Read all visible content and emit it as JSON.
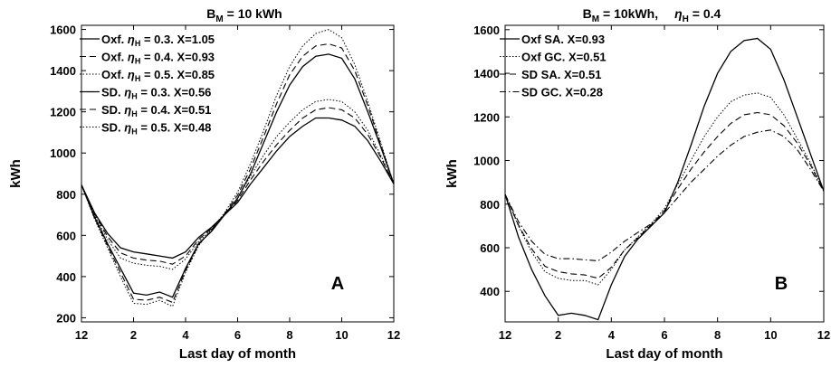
{
  "chart_data": [
    {
      "type": "line",
      "title_main": "B",
      "title_sub": "M",
      "title_rest": " = 10 kWh",
      "title_extra": "",
      "title_extra_sub": "",
      "title_extra_rest": "",
      "panel_letter": "A",
      "xlabel": "Last day of month",
      "ylabel": "kWh",
      "xlim": [
        0,
        12
      ],
      "ylim": [
        180,
        1620
      ],
      "x_ticks": [
        0,
        2,
        4,
        6,
        8,
        10,
        12
      ],
      "x_tick_labels": [
        "12",
        "2",
        "4",
        "6",
        "8",
        "10",
        "12"
      ],
      "y_ticks": [
        200,
        400,
        600,
        800,
        1000,
        1200,
        1400,
        1600
      ],
      "y_tick_labels": [
        "200",
        "400",
        "600",
        "800",
        "1000",
        "1200",
        "1400",
        "1600"
      ],
      "legend_placement": "top-left",
      "grid": false,
      "x": [
        0,
        0.5,
        1,
        1.5,
        2,
        2.5,
        3,
        3.5,
        4,
        4.5,
        5,
        5.5,
        6,
        6.5,
        7,
        7.5,
        8,
        8.5,
        9,
        9.5,
        10,
        10.5,
        11,
        11.5,
        12
      ],
      "series": [
        {
          "legend": "Oxf.",
          "eta_sub": "H",
          "legend_rest": " = 0.3. X=1.05",
          "dash": "solid",
          "width": 1.3,
          "values": [
            845,
            690,
            560,
            440,
            320,
            310,
            325,
            300,
            440,
            560,
            620,
            700,
            780,
            900,
            1050,
            1200,
            1330,
            1420,
            1470,
            1480,
            1460,
            1360,
            1200,
            1030,
            850
          ]
        },
        {
          "legend": "Oxf.",
          "eta_sub": "H",
          "legend_rest": " = 0.4. X=0.93",
          "dash": "long",
          "width": 1.1,
          "values": [
            845,
            685,
            550,
            420,
            290,
            285,
            300,
            275,
            430,
            555,
            625,
            705,
            795,
            925,
            1080,
            1240,
            1380,
            1470,
            1520,
            1530,
            1510,
            1400,
            1230,
            1040,
            850
          ]
        },
        {
          "legend": "Oxf.",
          "eta_sub": "H",
          "legend_rest": " = 0.5. X=0.85",
          "dash": "dot",
          "width": 1.0,
          "values": [
            845,
            680,
            540,
            400,
            270,
            265,
            285,
            255,
            420,
            550,
            630,
            710,
            810,
            950,
            1110,
            1280,
            1420,
            1520,
            1580,
            1600,
            1560,
            1430,
            1250,
            1050,
            850
          ]
        },
        {
          "legend": "SD.",
          "eta_sub": "H",
          "legend_rest": " = 0.3. X=0.56",
          "dash": "solid",
          "width": 1.3,
          "values": [
            845,
            710,
            610,
            540,
            520,
            510,
            500,
            490,
            520,
            590,
            640,
            700,
            760,
            850,
            930,
            1010,
            1080,
            1130,
            1170,
            1170,
            1160,
            1130,
            1060,
            960,
            850
          ]
        },
        {
          "legend": "SD.",
          "eta_sub": "H",
          "legend_rest": " = 0.4. X=0.51",
          "dash": "long",
          "width": 1.1,
          "values": [
            845,
            705,
            595,
            515,
            490,
            480,
            475,
            460,
            500,
            580,
            635,
            700,
            770,
            870,
            960,
            1040,
            1110,
            1170,
            1210,
            1220,
            1210,
            1170,
            1090,
            980,
            850
          ]
        },
        {
          "legend": "SD.",
          "eta_sub": "H",
          "legend_rest": " = 0.5. X=0.48",
          "dash": "dot",
          "width": 1.0,
          "values": [
            845,
            700,
            580,
            490,
            465,
            455,
            450,
            435,
            485,
            570,
            630,
            700,
            780,
            890,
            990,
            1080,
            1150,
            1210,
            1250,
            1260,
            1250,
            1200,
            1110,
            990,
            850
          ]
        }
      ]
    },
    {
      "type": "line",
      "title_main": "B",
      "title_sub": "M",
      "title_rest": " = 10kWh,",
      "title_extra": "η",
      "title_extra_sub": "H",
      "title_extra_rest": " = 0.4",
      "panel_letter": "B",
      "xlabel": "Last day of month",
      "ylabel": "kWh",
      "xlim": [
        0,
        12
      ],
      "ylim": [
        260,
        1620
      ],
      "x_ticks": [
        0,
        2,
        4,
        6,
        8,
        10,
        12
      ],
      "x_tick_labels": [
        "12",
        "2",
        "4",
        "6",
        "8",
        "10",
        "12"
      ],
      "y_ticks": [
        400,
        600,
        800,
        1000,
        1200,
        1400,
        1600
      ],
      "y_tick_labels": [
        "400",
        "600",
        "800",
        "1000",
        "1200",
        "1400",
        "1600"
      ],
      "legend_placement": "top-left",
      "grid": false,
      "x": [
        0,
        0.5,
        1,
        1.5,
        2,
        2.5,
        3,
        3.5,
        4,
        4.5,
        5,
        5.5,
        6,
        6.5,
        7,
        7.5,
        8,
        8.5,
        9,
        9.5,
        10,
        10.5,
        11,
        11.5,
        12
      ],
      "series": [
        {
          "legend": "Oxf SA. X=0.93",
          "eta_sub": "",
          "legend_rest": "",
          "dash": "solid",
          "width": 1.3,
          "values": [
            845,
            650,
            500,
            380,
            290,
            300,
            290,
            270,
            430,
            560,
            640,
            700,
            760,
            900,
            1070,
            1250,
            1400,
            1500,
            1550,
            1560,
            1510,
            1370,
            1200,
            1030,
            860
          ]
        },
        {
          "legend": "Oxf GC. X=0.51",
          "eta_sub": "",
          "legend_rest": "",
          "dash": "dot",
          "width": 1.0,
          "values": [
            845,
            700,
            580,
            490,
            460,
            450,
            450,
            430,
            500,
            590,
            650,
            710,
            780,
            890,
            1000,
            1110,
            1200,
            1270,
            1300,
            1310,
            1290,
            1210,
            1100,
            990,
            860
          ]
        },
        {
          "legend": "SD SA. X=0.51",
          "eta_sub": "",
          "legend_rest": "",
          "dash": "long",
          "width": 1.1,
          "values": [
            845,
            705,
            595,
            515,
            490,
            480,
            475,
            460,
            510,
            590,
            645,
            705,
            770,
            870,
            960,
            1040,
            1110,
            1170,
            1210,
            1220,
            1210,
            1160,
            1080,
            980,
            860
          ]
        },
        {
          "legend": "SD GC. X=0.28",
          "eta_sub": "",
          "legend_rest": "",
          "dash": "dashdot",
          "width": 1.1,
          "values": [
            845,
            720,
            630,
            570,
            550,
            550,
            545,
            540,
            580,
            630,
            670,
            710,
            760,
            830,
            900,
            960,
            1020,
            1070,
            1110,
            1130,
            1140,
            1110,
            1050,
            960,
            860
          ]
        }
      ]
    }
  ]
}
